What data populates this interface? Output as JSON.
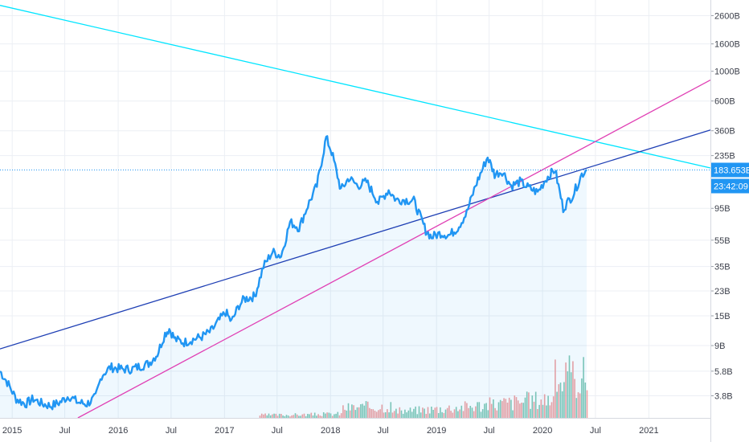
{
  "chart_data": {
    "type": "area",
    "scale": "log",
    "grid": true,
    "x_ticks": [
      "2015",
      "Jul",
      "2016",
      "Jul",
      "2017",
      "Jul",
      "2018",
      "Jul",
      "2019",
      "Jul",
      "2020",
      "Jul",
      "2021"
    ],
    "y_ticks": [
      "2600B",
      "1600B",
      "1000B",
      "600B",
      "360B",
      "235B",
      "95B",
      "55B",
      "35B",
      "23B",
      "15B",
      "9B",
      "5.8B",
      "3.8B"
    ],
    "y_tick_values": [
      2600,
      1600,
      1000,
      600,
      360,
      235,
      95,
      55,
      35,
      23,
      15,
      9,
      5.8,
      3.8
    ],
    "ylim": [
      2.6,
      3400
    ],
    "xlim": [
      "2014-11-20",
      "2021-08-01"
    ],
    "x_tick_dates": [
      "2015-01-01",
      "2015-07-01",
      "2016-01-01",
      "2016-07-01",
      "2017-01-01",
      "2017-07-01",
      "2018-01-01",
      "2018-07-01",
      "2019-01-01",
      "2019-07-01",
      "2020-01-01",
      "2020-07-01",
      "2021-01-01"
    ],
    "current_price_label": "183.653B",
    "current_price_value": 183.653,
    "countdown_label": "23:42:09",
    "series": [
      {
        "type": "area",
        "color": "#2196f3",
        "x": [
          "2014-11-20",
          "2014-12-15",
          "2015-01-15",
          "2015-02-15",
          "2015-03-15",
          "2015-04-15",
          "2015-05-15",
          "2015-06-15",
          "2015-07-15",
          "2015-08-15",
          "2015-09-15",
          "2015-10-15",
          "2015-11-05",
          "2015-12-05",
          "2016-01-15",
          "2016-02-15",
          "2016-03-15",
          "2016-04-15",
          "2016-05-15",
          "2016-06-10",
          "2016-06-25",
          "2016-07-15",
          "2016-08-15",
          "2016-09-15",
          "2016-10-15",
          "2016-11-15",
          "2016-12-15",
          "2017-01-05",
          "2017-01-25",
          "2017-02-20",
          "2017-03-10",
          "2017-04-15",
          "2017-05-15",
          "2017-06-15",
          "2017-07-15",
          "2017-08-15",
          "2017-09-15",
          "2017-10-15",
          "2017-11-15",
          "2017-12-17",
          "2018-01-05",
          "2018-02-06",
          "2018-03-05",
          "2018-04-05",
          "2018-05-05",
          "2018-06-15",
          "2018-07-20",
          "2018-08-15",
          "2018-09-15",
          "2018-10-15",
          "2018-11-25",
          "2018-12-15",
          "2019-01-15",
          "2019-02-15",
          "2019-03-15",
          "2019-04-15",
          "2019-05-15",
          "2019-06-26",
          "2019-07-20",
          "2019-08-15",
          "2019-09-15",
          "2019-10-15",
          "2019-11-15",
          "2019-12-15",
          "2020-01-15",
          "2020-02-13",
          "2020-03-12",
          "2020-04-15",
          "2020-05-15",
          "2020-06-01"
        ],
        "values": [
          5.8,
          4.8,
          3.6,
          3.3,
          3.6,
          3.3,
          3.2,
          3.4,
          3.8,
          3.4,
          3.3,
          3.7,
          5.4,
          6.2,
          6.0,
          6.0,
          6.3,
          6.6,
          7.8,
          11,
          12,
          10,
          9.5,
          10,
          10.5,
          11.5,
          14,
          16,
          13.5,
          18,
          20,
          21,
          35,
          45,
          42,
          75,
          68,
          100,
          140,
          320,
          250,
          130,
          160,
          140,
          150,
          105,
          130,
          110,
          110,
          108,
          65,
          58,
          62,
          60,
          68,
          88,
          140,
          230,
          170,
          180,
          140,
          150,
          135,
          125,
          160,
          185,
          95,
          120,
          170,
          185
        ]
      }
    ],
    "volume": {
      "x_range": [
        "2017-05-01",
        "2020-06-01"
      ],
      "up_color": "#80c8b4",
      "down_color": "#f2a0a0"
    },
    "trendlines": [
      {
        "color": "#00e5ff",
        "points": [
          [
            "2014-11-20",
            3100
          ],
          [
            "2021-08-01",
            190
          ]
        ]
      },
      {
        "color": "#1e3fb4",
        "points": [
          [
            "2014-11-20",
            8.5
          ],
          [
            "2021-08-01",
            365
          ]
        ]
      },
      {
        "color": "#e040b4",
        "points": [
          [
            "2015-08-15",
            2.6
          ],
          [
            "2021-08-01",
            860
          ]
        ]
      }
    ]
  }
}
